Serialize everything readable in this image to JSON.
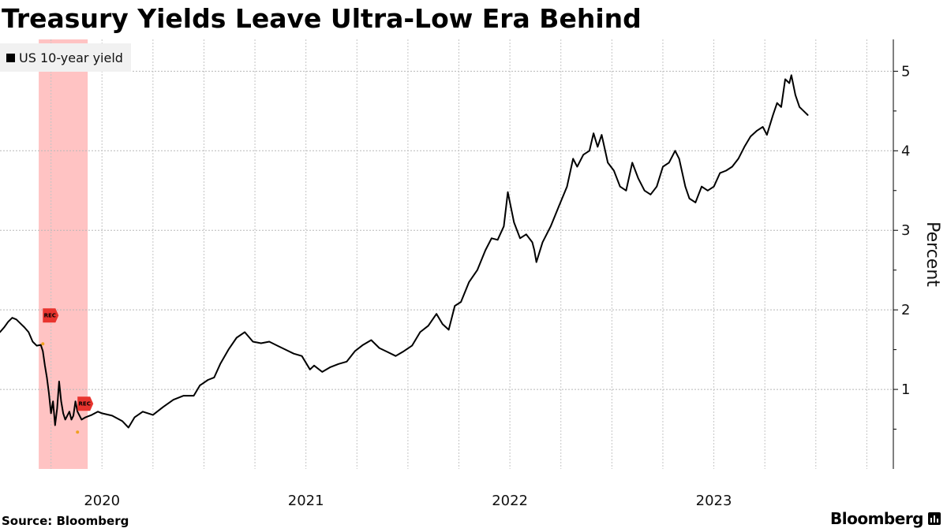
{
  "chart_data": {
    "type": "line",
    "title": "Treasury Yields Leave Ultra-Low Era Behind",
    "ylabel": "Percent",
    "xlabel": "",
    "ylim": [
      0,
      5.4
    ],
    "xlim": [
      2019.5,
      2023.88
    ],
    "yticks": [
      1,
      2,
      3,
      4,
      5
    ],
    "xticks": [
      {
        "label": "2020",
        "x": 2020.0
      },
      {
        "label": "2021",
        "x": 2021.0
      },
      {
        "label": "2022",
        "x": 2022.0
      },
      {
        "label": "2023",
        "x": 2023.0
      }
    ],
    "recession": {
      "start": 2019.69,
      "end": 2019.93,
      "color": "#ffb8b8"
    },
    "rec_markers": [
      {
        "label": "REC",
        "x": 2019.71,
        "y": 1.93
      },
      {
        "label": "REC",
        "x": 2019.88,
        "y": 0.82
      }
    ],
    "series": [
      {
        "name": "US 10-year yield",
        "color": "#000000",
        "points": [
          [
            2019.5,
            1.72
          ],
          [
            2019.52,
            1.78
          ],
          [
            2019.54,
            1.85
          ],
          [
            2019.56,
            1.9
          ],
          [
            2019.58,
            1.88
          ],
          [
            2019.6,
            1.83
          ],
          [
            2019.62,
            1.78
          ],
          [
            2019.64,
            1.72
          ],
          [
            2019.66,
            1.6
          ],
          [
            2019.68,
            1.55
          ],
          [
            2019.7,
            1.56
          ],
          [
            2019.71,
            1.48
          ],
          [
            2019.72,
            1.3
          ],
          [
            2019.73,
            1.15
          ],
          [
            2019.74,
            0.95
          ],
          [
            2019.75,
            0.7
          ],
          [
            2019.76,
            0.85
          ],
          [
            2019.77,
            0.55
          ],
          [
            2019.78,
            0.76
          ],
          [
            2019.79,
            1.1
          ],
          [
            2019.8,
            0.85
          ],
          [
            2019.81,
            0.7
          ],
          [
            2019.82,
            0.62
          ],
          [
            2019.84,
            0.72
          ],
          [
            2019.85,
            0.62
          ],
          [
            2019.86,
            0.67
          ],
          [
            2019.87,
            0.85
          ],
          [
            2019.88,
            0.72
          ],
          [
            2019.9,
            0.62
          ],
          [
            2019.92,
            0.65
          ],
          [
            2019.95,
            0.68
          ],
          [
            2019.98,
            0.72
          ],
          [
            2020.0,
            0.7
          ],
          [
            2020.05,
            0.67
          ],
          [
            2020.1,
            0.6
          ],
          [
            2020.13,
            0.52
          ],
          [
            2020.16,
            0.65
          ],
          [
            2020.2,
            0.72
          ],
          [
            2020.25,
            0.68
          ],
          [
            2020.3,
            0.78
          ],
          [
            2020.35,
            0.87
          ],
          [
            2020.4,
            0.92
          ],
          [
            2020.45,
            0.92
          ],
          [
            2020.48,
            1.05
          ],
          [
            2020.52,
            1.12
          ],
          [
            2020.55,
            1.15
          ],
          [
            2020.58,
            1.32
          ],
          [
            2020.62,
            1.5
          ],
          [
            2020.66,
            1.65
          ],
          [
            2020.7,
            1.72
          ],
          [
            2020.74,
            1.6
          ],
          [
            2020.78,
            1.58
          ],
          [
            2020.82,
            1.6
          ],
          [
            2020.86,
            1.55
          ],
          [
            2020.9,
            1.5
          ],
          [
            2020.94,
            1.45
          ],
          [
            2020.98,
            1.42
          ],
          [
            2021.02,
            1.25
          ],
          [
            2021.04,
            1.3
          ],
          [
            2021.08,
            1.22
          ],
          [
            2021.12,
            1.28
          ],
          [
            2021.16,
            1.32
          ],
          [
            2021.2,
            1.35
          ],
          [
            2021.24,
            1.48
          ],
          [
            2021.28,
            1.56
          ],
          [
            2021.32,
            1.62
          ],
          [
            2021.36,
            1.52
          ],
          [
            2021.4,
            1.47
          ],
          [
            2021.44,
            1.42
          ],
          [
            2021.48,
            1.48
          ],
          [
            2021.52,
            1.55
          ],
          [
            2021.56,
            1.72
          ],
          [
            2021.6,
            1.8
          ],
          [
            2021.64,
            1.95
          ],
          [
            2021.67,
            1.82
          ],
          [
            2021.7,
            1.75
          ],
          [
            2021.73,
            2.05
          ],
          [
            2021.76,
            2.1
          ],
          [
            2021.8,
            2.35
          ],
          [
            2021.84,
            2.5
          ],
          [
            2021.88,
            2.75
          ],
          [
            2021.91,
            2.9
          ],
          [
            2021.94,
            2.88
          ],
          [
            2021.97,
            3.05
          ],
          [
            2021.99,
            3.48
          ],
          [
            2022.02,
            3.1
          ],
          [
            2022.05,
            2.9
          ],
          [
            2022.08,
            2.95
          ],
          [
            2022.11,
            2.85
          ],
          [
            2022.12,
            2.75
          ],
          [
            2022.13,
            2.6
          ],
          [
            2022.16,
            2.85
          ],
          [
            2022.2,
            3.05
          ],
          [
            2022.24,
            3.3
          ],
          [
            2022.28,
            3.55
          ],
          [
            2022.31,
            3.9
          ],
          [
            2022.33,
            3.8
          ],
          [
            2022.36,
            3.95
          ],
          [
            2022.39,
            4.0
          ],
          [
            2022.41,
            4.22
          ],
          [
            2022.43,
            4.05
          ],
          [
            2022.45,
            4.2
          ],
          [
            2022.48,
            3.85
          ],
          [
            2022.51,
            3.75
          ],
          [
            2022.54,
            3.55
          ],
          [
            2022.57,
            3.5
          ],
          [
            2022.6,
            3.85
          ],
          [
            2022.63,
            3.65
          ],
          [
            2022.66,
            3.5
          ],
          [
            2022.69,
            3.45
          ],
          [
            2022.72,
            3.55
          ],
          [
            2022.75,
            3.8
          ],
          [
            2022.78,
            3.85
          ],
          [
            2022.81,
            4.0
          ],
          [
            2022.83,
            3.9
          ],
          [
            2022.86,
            3.55
          ],
          [
            2022.88,
            3.4
          ],
          [
            2022.91,
            3.35
          ],
          [
            2022.94,
            3.55
          ],
          [
            2022.97,
            3.5
          ],
          [
            2023.0,
            3.55
          ],
          [
            2023.03,
            3.72
          ],
          [
            2023.06,
            3.75
          ],
          [
            2023.09,
            3.8
          ],
          [
            2023.12,
            3.9
          ],
          [
            2023.15,
            4.05
          ],
          [
            2023.18,
            4.18
          ],
          [
            2023.21,
            4.25
          ],
          [
            2023.24,
            4.3
          ],
          [
            2023.26,
            4.2
          ],
          [
            2023.29,
            4.45
          ],
          [
            2023.31,
            4.6
          ],
          [
            2023.33,
            4.55
          ],
          [
            2023.35,
            4.9
          ],
          [
            2023.37,
            4.85
          ],
          [
            2023.38,
            4.95
          ],
          [
            2023.4,
            4.7
          ],
          [
            2023.42,
            4.55
          ],
          [
            2023.44,
            4.5
          ],
          [
            2023.46,
            4.45
          ]
        ]
      }
    ]
  },
  "legend": {
    "label": "US 10-year yield"
  },
  "footer": {
    "source": "Source: Bloomberg",
    "brand": "Bloomberg"
  }
}
